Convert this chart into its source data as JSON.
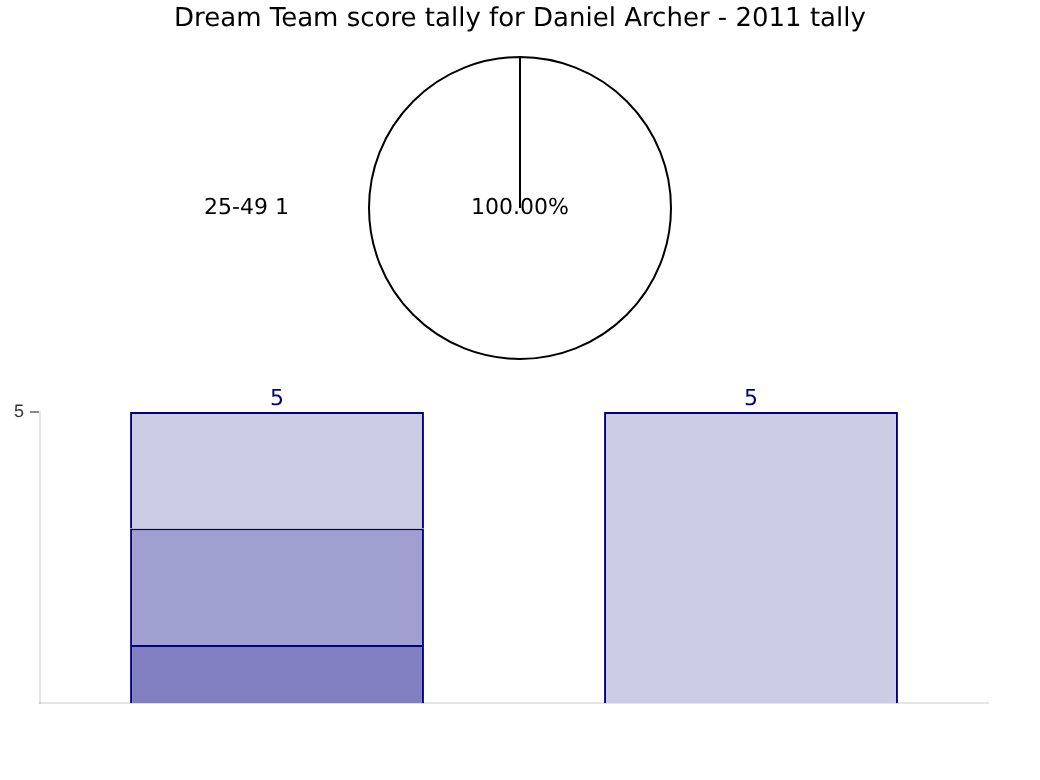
{
  "chart_data": [
    {
      "type": "pie",
      "title": "Dream Team score tally for Daniel Archer - 2011 tally",
      "categories": [
        "25-49"
      ],
      "values": [
        100
      ],
      "colors": [
        "#ffffff"
      ],
      "value_labels": [
        "100.00%"
      ],
      "annotations": [
        "1"
      ],
      "legend": false
    },
    {
      "type": "bar",
      "stacked": true,
      "categories": [
        null,
        null
      ],
      "series": [
        {
          "color": "#8080c0",
          "values": [
            1,
            0
          ]
        },
        {
          "color": "#a0a0d0",
          "values": [
            2,
            0
          ]
        },
        {
          "color": "#ccccE4",
          "values": [
            2,
            5
          ]
        }
      ],
      "totals": [
        "5",
        "5"
      ],
      "ylim": [
        0,
        5
      ],
      "yticks": [
        5
      ],
      "grid": false,
      "legend": false
    }
  ]
}
